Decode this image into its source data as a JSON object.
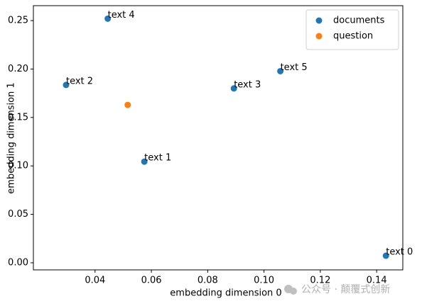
{
  "chart_data": {
    "type": "scatter",
    "xlabel": "embedding dimension 0",
    "ylabel": "embedding dimension 1",
    "xlim": [
      0.0181,
      0.1493
    ],
    "ylim": [
      -0.0073,
      0.2654
    ],
    "xticks": [
      0.04,
      0.06,
      0.08,
      {
        "value": 0.1,
        "label": "0.10"
      },
      0.12,
      0.14
    ],
    "yticks": [
      {
        "value": 0,
        "label": "0.00"
      },
      0.05,
      {
        "value": 0.1,
        "label": "0.10"
      },
      0.15,
      {
        "value": 0.2,
        "label": "0.20"
      },
      0.25
    ],
    "legend": "upper right",
    "series": [
      {
        "name": "documents",
        "color": "#1f77b4",
        "x": [
          0.1433,
          0.0575,
          0.0297,
          0.0893,
          0.0445,
          0.1058
        ],
        "values": [
          0.0073,
          0.1044,
          0.1836,
          0.18,
          0.252,
          0.1978
        ],
        "point_labels": [
          "text 0",
          "text 1",
          "text 2",
          "text 3",
          "text 4",
          "text 5"
        ]
      },
      {
        "name": "question",
        "color": "#ff7f0e",
        "x": [
          0.0516
        ],
        "values": [
          0.163
        ]
      }
    ],
    "watermark": "公众号 · 颠覆式创新"
  }
}
